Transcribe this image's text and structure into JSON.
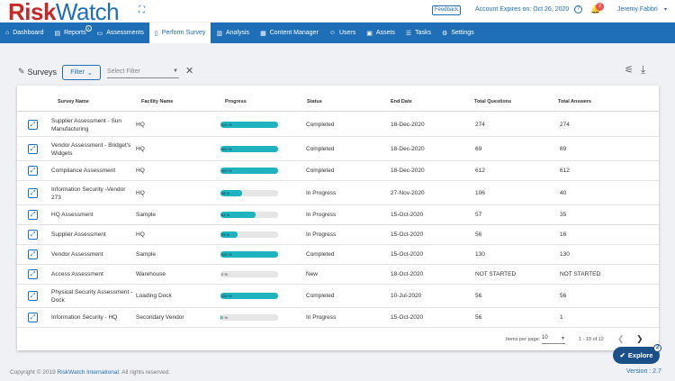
{
  "brand": {
    "logo_part1": "Risk",
    "logo_part2": "Watch"
  },
  "header": {
    "feedback_label": "Feedback",
    "account_expires": "Account Expires on: Oct 26, 2020",
    "notification_count": "2",
    "user_name": "Jeremy Fabbri"
  },
  "nav": {
    "items": [
      {
        "label": "Dashboard",
        "icon": "home-icon"
      },
      {
        "label": "Reports",
        "icon": "document-icon",
        "sup": "1"
      },
      {
        "label": "Assessments",
        "icon": "monitor-icon"
      },
      {
        "label": "Perform Survey",
        "icon": "clipboard-icon",
        "active": true
      },
      {
        "label": "Analysis",
        "icon": "chart-icon"
      },
      {
        "label": "Content Manager",
        "icon": "folder-icon"
      },
      {
        "label": "Users",
        "icon": "users-icon"
      },
      {
        "label": "Assets",
        "icon": "assets-icon"
      },
      {
        "label": "Tasks",
        "icon": "list-icon"
      },
      {
        "label": "Settings",
        "icon": "gear-icon"
      }
    ]
  },
  "toolbar": {
    "title": "Surveys",
    "filter_label": "Filter",
    "select_filter_placeholder": "Select Filter"
  },
  "table": {
    "headers": [
      "Survey Name",
      "Facility Name",
      "Progress",
      "Status",
      "End Date",
      "Total Questions",
      "Total Answers"
    ],
    "rows": [
      {
        "name": "Supplier Assessment - Sun Manufacturing",
        "facility": "HQ",
        "progress": 100,
        "progress_label": "100 %",
        "status": "Completed",
        "end_date": "18-Dec-2020",
        "questions": "274",
        "answers": "274"
      },
      {
        "name": "Vendor Assessment - Bridget's Widgets",
        "facility": "HQ",
        "progress": 100,
        "progress_label": "100 %",
        "status": "Completed",
        "end_date": "18-Dec-2020",
        "questions": "69",
        "answers": "69"
      },
      {
        "name": "Compliance Assessment",
        "facility": "HQ",
        "progress": 100,
        "progress_label": "100 %",
        "status": "Completed",
        "end_date": "18-Dec-2020",
        "questions": "612",
        "answers": "612"
      },
      {
        "name": "Information Security -Vendor 273",
        "facility": "HQ",
        "progress": 38,
        "progress_label": "38 %",
        "status": "In Progress",
        "end_date": "27-Nov-2020",
        "questions": "106",
        "answers": "40"
      },
      {
        "name": "HQ Assessment",
        "facility": "Sample",
        "progress": 61,
        "progress_label": "61 %",
        "status": "In Progress",
        "end_date": "15-Oct-2020",
        "questions": "57",
        "answers": "35"
      },
      {
        "name": "Supplier Assessment",
        "facility": "HQ",
        "progress": 29,
        "progress_label": "29 %",
        "status": "In Progress",
        "end_date": "15-Oct-2020",
        "questions": "56",
        "answers": "16"
      },
      {
        "name": "Vendor Assessment",
        "facility": "Sample",
        "progress": 100,
        "progress_label": "100 %",
        "status": "Completed",
        "end_date": "15-Oct-2020",
        "questions": "130",
        "answers": "130"
      },
      {
        "name": "Access Assessment",
        "facility": "Warehouse",
        "progress": 0,
        "progress_label": "0 %",
        "status": "New",
        "end_date": "18-Oct-2020",
        "questions": "NOT STARTED",
        "answers": "NOT STARTED"
      },
      {
        "name": "Physical Security Assessment -Dock",
        "facility": "Loading Dock",
        "progress": 100,
        "progress_label": "100 %",
        "status": "Completed",
        "end_date": "10-Jul-2020",
        "questions": "56",
        "answers": "56"
      },
      {
        "name": "Information Security - HQ",
        "facility": "Secondary Vendor",
        "progress": 2,
        "progress_label": "2 %",
        "status": "In Progress",
        "end_date": "15-Oct-2020",
        "questions": "56",
        "answers": "1"
      }
    ]
  },
  "pagination": {
    "items_per_page_label": "Items per page:",
    "items_per_page_value": "10",
    "range_label": "1 - 10 of 12"
  },
  "footer": {
    "copyright_prefix": "Copyright © 2019 ",
    "copyright_link": "RiskWatch International",
    "copyright_suffix": ". All rights reserved.",
    "version": "Version : 2.7"
  },
  "explore": {
    "label": "Explore",
    "badge": "2"
  },
  "colors": {
    "primary": "#1f6fb8",
    "progress": "#1fb3c0",
    "logo_red": "#c62828"
  }
}
